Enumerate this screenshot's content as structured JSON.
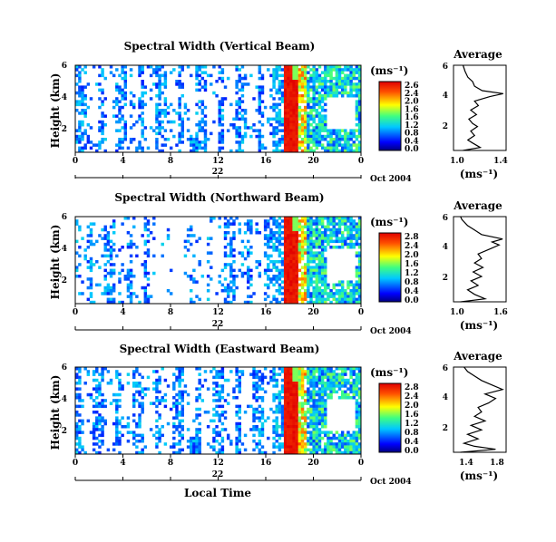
{
  "chart_data": [
    {
      "type": "heatmap",
      "title": "Spectral Width (Vertical Beam)",
      "ylabel": "Height (km)",
      "y_ticks": [
        "6",
        "4",
        "2"
      ],
      "x_ticks": [
        "0",
        "4",
        "8",
        "12",
        "16",
        "20",
        "0"
      ],
      "xlim": [
        0,
        24
      ],
      "ylim": [
        0.3,
        6
      ],
      "date_day": "22",
      "date_label": "Oct 2004",
      "colorbar": {
        "unit": "(ms⁻¹)",
        "labels": [
          "2.6",
          "2.4",
          "2.0",
          "1.6",
          "1.6",
          "1.2",
          "0.8",
          "0.4",
          "0.0"
        ],
        "max": 2.6
      },
      "profile": {
        "title": "Average",
        "xlabel": "(ms⁻¹)",
        "x_ticks": [
          "1.0",
          "1.4"
        ],
        "y_ticks": [
          "6",
          "4",
          "2"
        ],
        "xlim": [
          0.9,
          1.45
        ],
        "points": [
          [
            1.0,
            0.3
          ],
          [
            1.18,
            0.5
          ],
          [
            1.1,
            0.8
          ],
          [
            1.05,
            1.0
          ],
          [
            1.12,
            1.3
          ],
          [
            1.08,
            1.6
          ],
          [
            1.15,
            1.9
          ],
          [
            1.1,
            2.1
          ],
          [
            1.06,
            2.4
          ],
          [
            1.14,
            2.7
          ],
          [
            1.08,
            3.0
          ],
          [
            1.16,
            3.3
          ],
          [
            1.12,
            3.6
          ],
          [
            1.28,
            3.9
          ],
          [
            1.42,
            4.1
          ],
          [
            1.2,
            4.3
          ],
          [
            1.12,
            4.6
          ],
          [
            1.1,
            4.9
          ],
          [
            1.05,
            5.2
          ],
          [
            1.02,
            5.6
          ],
          [
            1.0,
            6.0
          ]
        ]
      }
    },
    {
      "type": "heatmap",
      "title": "Spectral Width (Northward Beam)",
      "ylabel": "Height (km)",
      "y_ticks": [
        "6",
        "4",
        "2"
      ],
      "x_ticks": [
        "0",
        "4",
        "8",
        "12",
        "16",
        "20",
        "0"
      ],
      "xlim": [
        0,
        24
      ],
      "ylim": [
        0.3,
        6
      ],
      "date_day": "22",
      "date_label": "Oct 2004",
      "colorbar": {
        "unit": "(ms⁻¹)",
        "labels": [
          "2.8",
          "2.4",
          "2.0",
          "1.6",
          "1.2",
          "0.8",
          "0.4",
          "0.0"
        ],
        "max": 2.8
      },
      "profile": {
        "title": "Average",
        "xlabel": "(ms⁻¹)",
        "x_ticks": [
          "1.0",
          "1.6"
        ],
        "y_ticks": [
          "6",
          "4",
          "2"
        ],
        "xlim": [
          0.9,
          1.65
        ],
        "points": [
          [
            1.0,
            0.3
          ],
          [
            1.35,
            0.5
          ],
          [
            1.2,
            0.8
          ],
          [
            1.1,
            1.1
          ],
          [
            1.25,
            1.4
          ],
          [
            1.15,
            1.7
          ],
          [
            1.3,
            2.0
          ],
          [
            1.18,
            2.3
          ],
          [
            1.32,
            2.6
          ],
          [
            1.2,
            2.9
          ],
          [
            1.3,
            3.2
          ],
          [
            1.25,
            3.5
          ],
          [
            1.4,
            3.8
          ],
          [
            1.55,
            4.1
          ],
          [
            1.45,
            4.3
          ],
          [
            1.6,
            4.5
          ],
          [
            1.3,
            4.8
          ],
          [
            1.2,
            5.1
          ],
          [
            1.1,
            5.4
          ],
          [
            1.02,
            5.8
          ],
          [
            1.0,
            6.0
          ]
        ]
      }
    },
    {
      "type": "heatmap",
      "title": "Spectral Width (Eastward Beam)",
      "ylabel": "Height (km)",
      "y_ticks": [
        "6",
        "4",
        "2"
      ],
      "x_ticks": [
        "0",
        "4",
        "8",
        "12",
        "16",
        "20",
        "0"
      ],
      "xlim": [
        0,
        24
      ],
      "ylim": [
        0.3,
        6
      ],
      "date_day": "22",
      "date_label": "Oct 2004",
      "xlabel": "Local Time",
      "colorbar": {
        "unit": "(ms⁻¹)",
        "labels": [
          "2.8",
          "2.4",
          "2.0",
          "1.6",
          "1.2",
          "0.8",
          "0.4",
          "0.0"
        ],
        "max": 2.8
      },
      "profile": {
        "title": "Average",
        "xlabel": "(ms⁻¹)",
        "x_ticks": [
          "1.4",
          "1.8"
        ],
        "y_ticks": [
          "6",
          "4",
          "2"
        ],
        "xlim": [
          1.2,
          1.95
        ],
        "points": [
          [
            1.3,
            0.3
          ],
          [
            1.8,
            0.5
          ],
          [
            1.5,
            0.7
          ],
          [
            1.35,
            0.9
          ],
          [
            1.55,
            1.2
          ],
          [
            1.4,
            1.5
          ],
          [
            1.6,
            1.8
          ],
          [
            1.45,
            2.1
          ],
          [
            1.65,
            2.4
          ],
          [
            1.5,
            2.7
          ],
          [
            1.6,
            3.0
          ],
          [
            1.55,
            3.3
          ],
          [
            1.7,
            3.6
          ],
          [
            1.8,
            3.9
          ],
          [
            1.65,
            4.2
          ],
          [
            1.9,
            4.5
          ],
          [
            1.75,
            4.8
          ],
          [
            1.6,
            5.1
          ],
          [
            1.5,
            5.4
          ],
          [
            1.4,
            5.7
          ],
          [
            1.35,
            6.0
          ]
        ]
      }
    }
  ]
}
